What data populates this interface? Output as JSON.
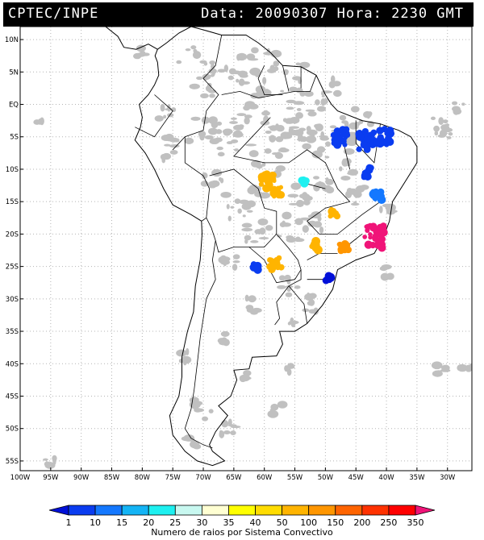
{
  "header": {
    "source": "CPTEC/INPE",
    "date_label": "Data:",
    "date_value": "20090307",
    "time_label": "Hora:",
    "time_value": "2230 GMT"
  },
  "axes": {
    "lat_labels": [
      "10N",
      "5N",
      "EQ",
      "5S",
      "10S",
      "15S",
      "20S",
      "25S",
      "30S",
      "35S",
      "40S",
      "45S",
      "50S",
      "55S"
    ],
    "lon_labels": [
      "100W",
      "95W",
      "90W",
      "85W",
      "80W",
      "75W",
      "70W",
      "65W",
      "60W",
      "55W",
      "50W",
      "45W",
      "40W",
      "35W",
      "30W"
    ]
  },
  "legend": {
    "title": "Numero de raios por Sistema Convectivo",
    "labels": [
      "1",
      "10",
      "15",
      "20",
      "25",
      "30",
      "35",
      "40",
      "50",
      "100",
      "150",
      "200",
      "250",
      "350"
    ],
    "colors": [
      "#0010d8",
      "#0a3cf0",
      "#1478ff",
      "#14b4f5",
      "#1ef0f0",
      "#c8f8f0",
      "#ffffd2",
      "#ffff00",
      "#ffdc00",
      "#ffb400",
      "#ff9600",
      "#ff6400",
      "#ff3200",
      "#ff0000",
      "#f01478"
    ]
  },
  "map_style": {
    "cloud_color": "#c0c0c0",
    "land_outline": "#000000",
    "grid_color": "#b4b4b4"
  },
  "systems": [
    {
      "lon": -47.5,
      "lat": -5.0,
      "color": "#0a3cf0"
    },
    {
      "lon": -43.5,
      "lat": -5.5,
      "color": "#0a3cf0"
    },
    {
      "lon": -40.5,
      "lat": -5.0,
      "color": "#0a3cf0"
    },
    {
      "lon": -43.0,
      "lat": -10.5,
      "color": "#0a3cf0"
    },
    {
      "lon": -41.5,
      "lat": -14.0,
      "color": "#1478ff"
    },
    {
      "lon": -57.8,
      "lat": -13.5,
      "color": "#ffb400"
    },
    {
      "lon": -59.5,
      "lat": -12.0,
      "color": "#ffb400"
    },
    {
      "lon": -58.2,
      "lat": -24.5,
      "color": "#ffb400"
    },
    {
      "lon": -48.5,
      "lat": -17.0,
      "color": "#ffb400"
    },
    {
      "lon": -51.5,
      "lat": -21.8,
      "color": "#ffb400"
    },
    {
      "lon": -47.0,
      "lat": -22.0,
      "color": "#ff9600"
    },
    {
      "lon": -42.0,
      "lat": -20.5,
      "color": "#f01478"
    },
    {
      "lon": -49.5,
      "lat": -26.8,
      "color": "#0010d8"
    },
    {
      "lon": -61.5,
      "lat": -25.0,
      "color": "#0a3cf0"
    },
    {
      "lon": -53.5,
      "lat": -12.0,
      "color": "#1ef0f0"
    }
  ]
}
